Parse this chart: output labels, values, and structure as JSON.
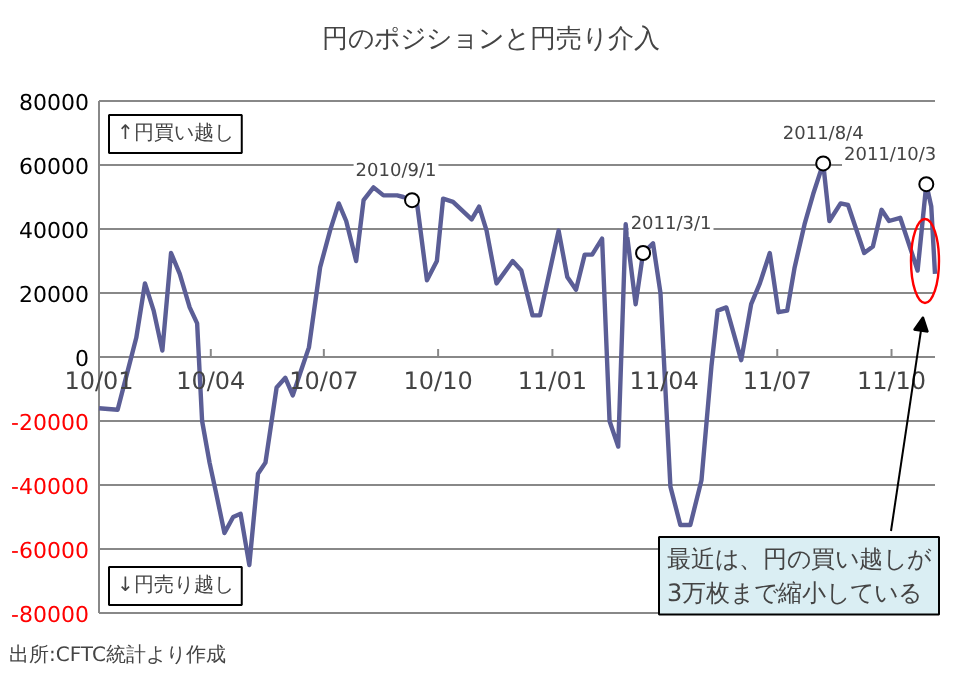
{
  "chart_data": {
    "type": "line",
    "title": "円のポジションと円売り介入",
    "x": [
      "2010-01-01",
      "2010-01-16",
      "2010-01-25",
      "2010-01-31",
      "2010-02-07",
      "2010-02-14",
      "2010-02-21",
      "2010-02-28",
      "2010-03-07",
      "2010-03-15",
      "2010-03-21",
      "2010-03-25",
      "2010-03-31",
      "2010-04-05",
      "2010-04-12",
      "2010-04-19",
      "2010-04-25",
      "2010-05-02",
      "2010-05-09",
      "2010-05-15",
      "2010-05-24",
      "2010-05-31",
      "2010-06-06",
      "2010-06-12",
      "2010-06-19",
      "2010-06-28",
      "2010-07-06",
      "2010-07-13",
      "2010-07-19",
      "2010-07-27",
      "2010-08-02",
      "2010-08-10",
      "2010-08-18",
      "2010-08-29",
      "2010-09-03",
      "2010-09-10",
      "2010-09-14",
      "2010-09-22",
      "2010-09-30",
      "2010-10-05",
      "2010-10-13",
      "2010-10-28",
      "2010-11-03",
      "2010-11-09",
      "2010-11-17",
      "2010-11-30",
      "2010-12-07",
      "2010-12-16",
      "2010-12-22",
      "2011-01-06",
      "2011-01-13",
      "2011-01-20",
      "2011-01-27",
      "2011-02-02",
      "2011-02-10",
      "2011-02-16",
      "2011-02-23",
      "2011-03-01",
      "2011-03-09",
      "2011-03-15",
      "2011-03-23",
      "2011-03-29",
      "2011-04-06",
      "2011-04-14",
      "2011-04-22",
      "2011-05-01",
      "2011-05-09",
      "2011-05-14",
      "2011-05-21",
      "2011-06-02",
      "2011-06-10",
      "2011-06-17",
      "2011-06-25",
      "2011-07-02",
      "2011-07-09",
      "2011-07-15",
      "2011-07-23",
      "2011-07-30",
      "2011-08-07",
      "2011-08-12",
      "2011-08-21",
      "2011-08-27",
      "2011-09-09",
      "2011-09-16",
      "2011-09-23",
      "2011-09-29",
      "2011-10-08",
      "2011-10-14",
      "2011-10-22",
      "2011-10-29",
      "2011-11-02",
      "2011-11-05"
    ],
    "series": [
      {
        "color": "#5b5e96",
        "values": [
          -16000,
          -16500,
          -3000,
          6000,
          23000,
          14500,
          2000,
          32500,
          26000,
          15500,
          10500,
          -20000,
          -33000,
          -42000,
          -55000,
          -50000,
          -49000,
          -65000,
          -36500,
          -33000,
          -9500,
          -6500,
          -12000,
          -5000,
          3000,
          28000,
          39500,
          48000,
          42500,
          30000,
          49000,
          53000,
          50500,
          50500,
          50000,
          49000,
          48000,
          24000,
          30000,
          49500,
          48500,
          43000,
          47000,
          39500,
          23000,
          30000,
          27000,
          13000,
          13000,
          39500,
          25000,
          21000,
          32000,
          32000,
          37000,
          -20000,
          -28000,
          41500,
          16500,
          32500,
          35500,
          20000,
          -40500,
          -52500,
          -52500,
          -38500,
          -3000,
          14500,
          15500,
          -1000,
          16500,
          23000,
          32500,
          14000,
          14500,
          28000,
          41500,
          51000,
          60500,
          42500,
          48000,
          47500,
          32500,
          34500,
          46000,
          42500,
          43500,
          36500,
          27000,
          54000,
          47000,
          26000
        ]
      }
    ],
    "xlim": [
      "2010-01-01",
      "2011-11-05"
    ],
    "xticks": [
      {
        "value": "2010-01-01",
        "label": "10/01"
      },
      {
        "value": "2010-04-01",
        "label": "10/04"
      },
      {
        "value": "2010-07-01",
        "label": "10/07"
      },
      {
        "value": "2010-10-01",
        "label": "10/10"
      },
      {
        "value": "2011-01-01",
        "label": "11/01"
      },
      {
        "value": "2011-04-01",
        "label": "11/04"
      },
      {
        "value": "2011-07-01",
        "label": "11/07"
      },
      {
        "value": "2011-10-01",
        "label": "11/10"
      }
    ],
    "ylim": [
      -80000,
      80000
    ],
    "yticks": [
      -80000,
      -60000,
      -40000,
      -20000,
      0,
      20000,
      40000,
      60000,
      80000
    ],
    "grid": "y",
    "marker": "none",
    "line_style": "solid",
    "annotations": [
      "↑円買い越し",
      "↓円売り越し",
      "最近は、円の買い越しが\n3万枚まで縮小している",
      "出所:CFTC統計より作成",
      {
        "text": "2010/9/1",
        "x": "2010-09-10",
        "y": 49000
      },
      {
        "text": "2011/3/1",
        "x": "2011-03-15",
        "y": 32500
      },
      {
        "text": "2011/8/4",
        "x": "2011-08-07",
        "y": 60500
      },
      {
        "text": "2011/10/3",
        "x": "2011-10-29",
        "y": 54000
      }
    ]
  }
}
